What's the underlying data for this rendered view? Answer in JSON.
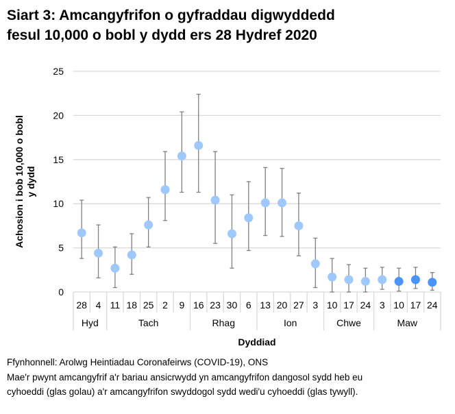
{
  "chart_data": {
    "type": "scatter",
    "title_line1": "Siart 3: Amcangyfrifon o gyfraddau digwyddedd",
    "title_line2": "fesul 10,000 o bobl y dydd ers 28 Hydref 2020",
    "xlabel": "Dyddiad",
    "ylabel_line1": "Achosion i bob 10,000 o bobl",
    "ylabel_line2": "y dydd",
    "ylim": [
      0,
      25
    ],
    "yticks": [
      0,
      5,
      10,
      15,
      20,
      25
    ],
    "grid": true,
    "categories": [
      "28",
      "4",
      "11",
      "18",
      "25",
      "2",
      "9",
      "16",
      "23",
      "30",
      "6",
      "13",
      "20",
      "27",
      "3",
      "10",
      "17",
      "24",
      "3",
      "10",
      "17",
      "24"
    ],
    "groups": [
      {
        "label": "Hyd",
        "count": 2
      },
      {
        "label": "Tach",
        "count": 5
      },
      {
        "label": "Rhag",
        "count": 4
      },
      {
        "label": "Ion",
        "count": 4
      },
      {
        "label": "Chwe",
        "count": 3
      },
      {
        "label": "Maw",
        "count": 4
      }
    ],
    "values": [
      6.7,
      4.4,
      2.7,
      4.2,
      7.6,
      11.6,
      15.4,
      16.6,
      10.4,
      6.6,
      8.4,
      10.1,
      10.1,
      7.5,
      3.2,
      1.7,
      1.4,
      1.2,
      1.4,
      1.2,
      1.4,
      1.1
    ],
    "lower": [
      3.8,
      1.6,
      0.5,
      2.0,
      5.1,
      8.1,
      11.3,
      11.3,
      5.5,
      2.7,
      4.7,
      6.4,
      6.3,
      4.1,
      0.5,
      0.0,
      0.0,
      0.0,
      0.3,
      0.1,
      0.4,
      0.2
    ],
    "upper": [
      10.4,
      7.6,
      5.1,
      6.6,
      10.7,
      15.9,
      20.4,
      22.4,
      15.9,
      11.0,
      12.5,
      14.1,
      14.0,
      11.2,
      6.1,
      3.8,
      3.1,
      2.7,
      2.8,
      2.7,
      2.8,
      2.2
    ],
    "official": [
      false,
      false,
      false,
      false,
      false,
      false,
      false,
      false,
      false,
      false,
      false,
      false,
      false,
      false,
      false,
      false,
      false,
      false,
      false,
      true,
      true,
      true
    ],
    "colors": {
      "unofficial": "#9fc8ff",
      "official": "#4a94fb",
      "errorbar": "#7f7f7f",
      "grid": "#d9d9d9"
    }
  },
  "footnotes": {
    "source": "Ffynhonnell: Arolwg Heintiadau Coronafeirws (COVID-19), ONS",
    "note_line1": "Mae'r pwynt amcangyfrif a'r bariau ansicrwydd yn amcangyfrifon dangosol sydd heb eu",
    "note_line2": "cyhoeddi (glas golau) a'r amcangyfrifon swyddogol sydd wedi'u cyhoeddi (glas tywyll)."
  }
}
